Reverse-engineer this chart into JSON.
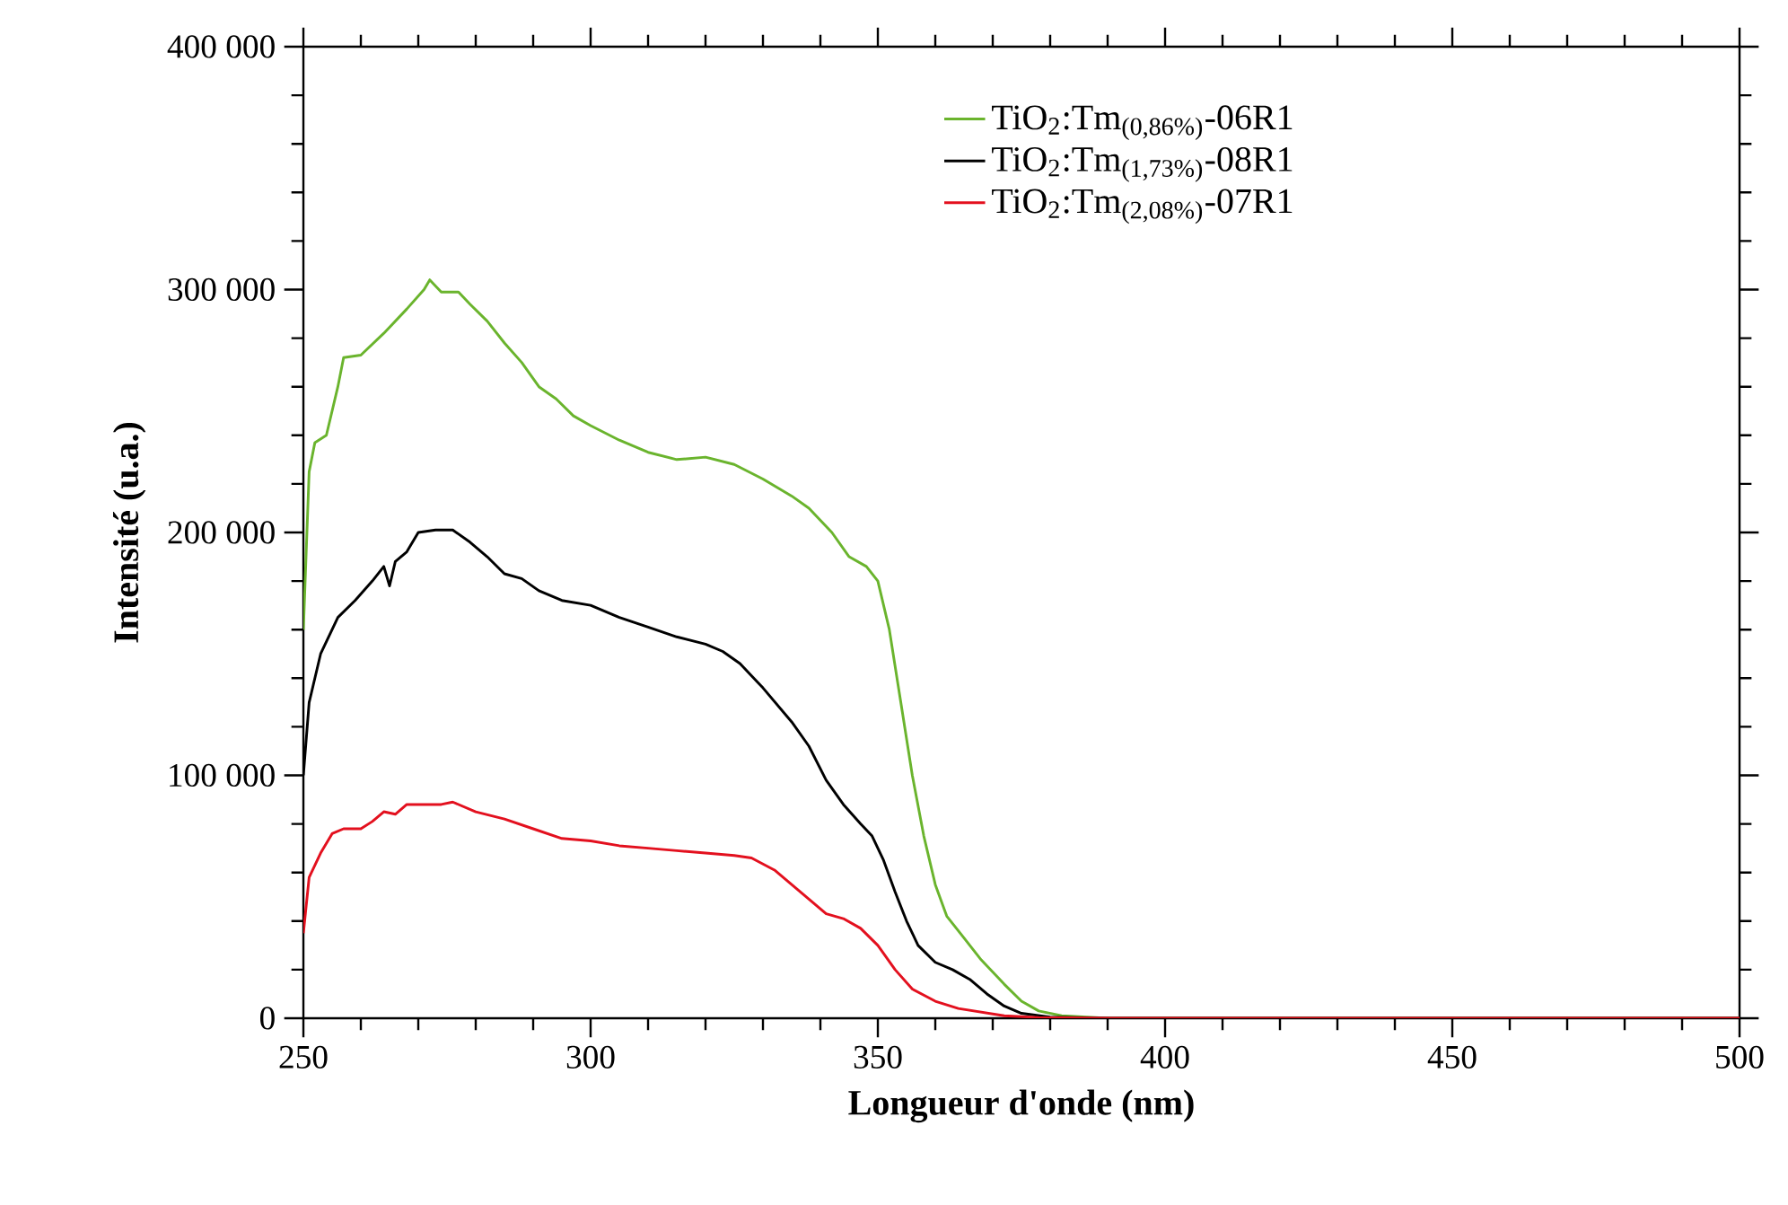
{
  "chart_data": {
    "type": "line",
    "xlabel": "Longueur d'onde (nm)",
    "ylabel": "Intensité (u.a.)",
    "xlim": [
      250,
      500
    ],
    "ylim": [
      0,
      400000
    ],
    "xticks": [
      250,
      300,
      350,
      400,
      450,
      500
    ],
    "yticks": [
      0,
      {
        "value": 100000,
        "label": "100 000"
      },
      {
        "value": 200000,
        "label": "200 000"
      },
      {
        "value": 300000,
        "label": "300 000"
      },
      {
        "value": 400000,
        "label": "400 000"
      }
    ],
    "legend": "top right",
    "marker": "none",
    "line_style": "solid",
    "series": [
      {
        "name": "TiO$_{2}$:Tm$_{(0,86%)}$-06R1",
        "color": "#6ab42d",
        "x": [
          250,
          251,
          252,
          254,
          256,
          257,
          260,
          264,
          268,
          271,
          272,
          274,
          277,
          279,
          282,
          285,
          288,
          291,
          294,
          297,
          300,
          305,
          310,
          315,
          320,
          325,
          330,
          335,
          338,
          342,
          345,
          348,
          350,
          352,
          354,
          356,
          358,
          360,
          362,
          365,
          368,
          372,
          375,
          378,
          382,
          390,
          500
        ],
        "values": [
          160000,
          225000,
          237000,
          240000,
          260000,
          272000,
          273000,
          282000,
          292000,
          300000,
          304000,
          299000,
          299000,
          294000,
          287000,
          278000,
          270000,
          260000,
          255000,
          248000,
          244000,
          238000,
          233000,
          230000,
          231000,
          228000,
          222000,
          215000,
          210000,
          200000,
          190000,
          186000,
          180000,
          160000,
          130000,
          100000,
          75000,
          55000,
          42000,
          33000,
          24000,
          14000,
          7000,
          3000,
          1000,
          0,
          0
        ]
      },
      {
        "name": "TiO$_{2}$:Tm$_{(1,73%)}$-08R1",
        "color": "#000000",
        "x": [
          250,
          251,
          253,
          256,
          259,
          262,
          264,
          265,
          266,
          268,
          270,
          273,
          276,
          279,
          282,
          285,
          288,
          291,
          295,
          300,
          305,
          310,
          315,
          320,
          323,
          326,
          330,
          335,
          338,
          341,
          344,
          347,
          349,
          351,
          353,
          355,
          357,
          360,
          363,
          366,
          369,
          372,
          375,
          380,
          390,
          500
        ],
        "values": [
          100000,
          130000,
          150000,
          165000,
          172000,
          180000,
          186000,
          178000,
          188000,
          192000,
          200000,
          201000,
          201000,
          196000,
          190000,
          183000,
          181000,
          176000,
          172000,
          170000,
          165000,
          161000,
          157000,
          154000,
          151000,
          146000,
          136000,
          122000,
          112000,
          98000,
          88000,
          80000,
          75000,
          65000,
          52000,
          40000,
          30000,
          23000,
          20000,
          16000,
          10000,
          5000,
          2000,
          500,
          0,
          0
        ]
      },
      {
        "name": "TiO$_{2}$:Tm$_{(2,08%)}$-07R1",
        "color": "#e3101e",
        "x": [
          250,
          251,
          253,
          255,
          257,
          260,
          262,
          264,
          266,
          268,
          271,
          274,
          276,
          280,
          285,
          290,
          295,
          300,
          305,
          310,
          315,
          320,
          325,
          328,
          332,
          335,
          338,
          341,
          344,
          347,
          350,
          353,
          356,
          360,
          364,
          368,
          372,
          378,
          390,
          500
        ],
        "values": [
          35000,
          58000,
          68000,
          76000,
          78000,
          78000,
          81000,
          85000,
          84000,
          88000,
          88000,
          88000,
          89000,
          85000,
          82000,
          78000,
          74000,
          73000,
          71000,
          70000,
          69000,
          68000,
          67000,
          66000,
          61000,
          55000,
          49000,
          43000,
          41000,
          37000,
          30000,
          20000,
          12000,
          7000,
          4000,
          2500,
          1000,
          300,
          0,
          0
        ]
      }
    ]
  }
}
